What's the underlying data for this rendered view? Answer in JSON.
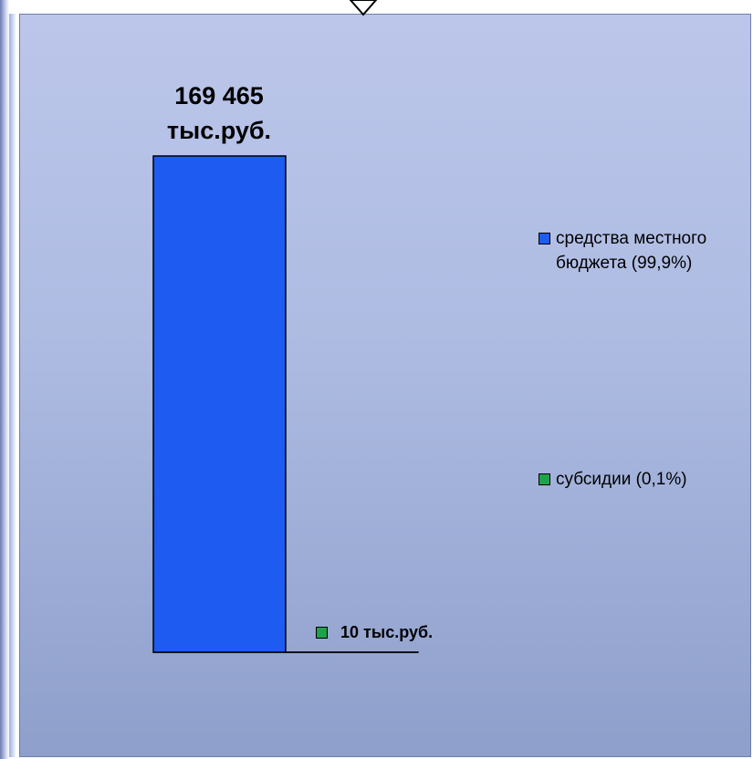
{
  "chart_data": {
    "type": "bar",
    "series": [
      {
        "name": "средства местного бюджета (99,9%)",
        "value": 169465,
        "color": "#1e5bf0",
        "data_label": "169 465 тыс.руб."
      },
      {
        "name": "субсидии (0,1%)",
        "value": 10,
        "color": "#1fa34a",
        "data_label": "10 тыс.руб."
      }
    ],
    "legend_position": "right",
    "grid": false
  }
}
